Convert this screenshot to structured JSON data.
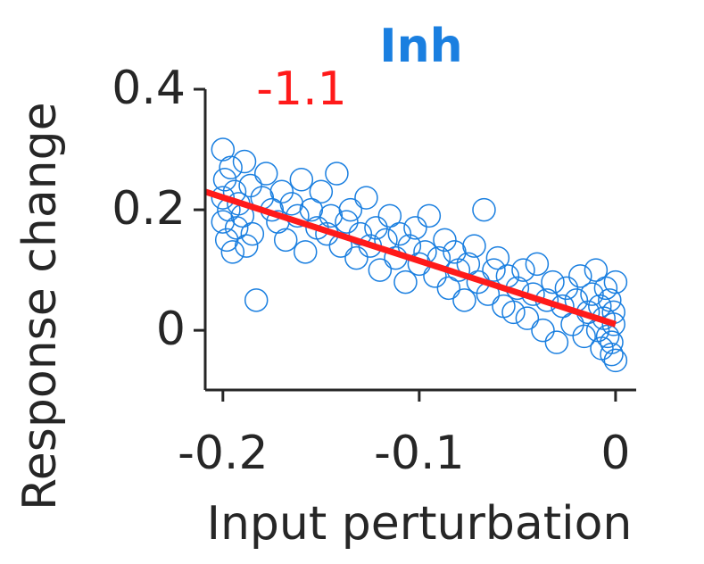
{
  "chart_data": {
    "type": "scatter",
    "title": "Inh",
    "title_color": "#1a7fe0",
    "xlabel": "Input perturbation",
    "ylabel": "Response change",
    "annotations": [
      {
        "text": "-1.1",
        "color": "#ff1a1a"
      }
    ],
    "xlim": [
      -0.209,
      0.0105
    ],
    "ylim": [
      -0.099,
      0.4
    ],
    "xticks": [
      -0.2,
      -0.1,
      0
    ],
    "yticks": [
      0,
      0.2,
      0.4
    ],
    "series": [
      {
        "color": "#1a7fe0",
        "x": [
          -0.2,
          -0.2,
          -0.2,
          -0.199,
          -0.198,
          -0.197,
          -0.196,
          -0.195,
          -0.194,
          -0.193,
          -0.192,
          -0.19,
          -0.189,
          -0.188,
          -0.186,
          -0.185,
          -0.183,
          -0.18,
          -0.178,
          -0.175,
          -0.172,
          -0.17,
          -0.168,
          -0.165,
          -0.162,
          -0.16,
          -0.158,
          -0.155,
          -0.152,
          -0.15,
          -0.147,
          -0.145,
          -0.142,
          -0.14,
          -0.137,
          -0.135,
          -0.132,
          -0.13,
          -0.127,
          -0.125,
          -0.122,
          -0.12,
          -0.117,
          -0.115,
          -0.112,
          -0.11,
          -0.107,
          -0.105,
          -0.102,
          -0.1,
          -0.097,
          -0.095,
          -0.092,
          -0.09,
          -0.087,
          -0.085,
          -0.082,
          -0.08,
          -0.077,
          -0.075,
          -0.072,
          -0.07,
          -0.067,
          -0.065,
          -0.062,
          -0.06,
          -0.057,
          -0.055,
          -0.052,
          -0.05,
          -0.047,
          -0.045,
          -0.042,
          -0.04,
          -0.037,
          -0.035,
          -0.032,
          -0.03,
          -0.027,
          -0.025,
          -0.022,
          -0.02,
          -0.018,
          -0.016,
          -0.014,
          -0.012,
          -0.01,
          -0.009,
          -0.008,
          -0.007,
          -0.006,
          -0.005,
          -0.004,
          -0.003,
          -0.002,
          -0.001,
          0,
          0,
          -0.001,
          -0.002
        ],
        "values": [
          0.22,
          0.18,
          0.3,
          0.25,
          0.15,
          0.2,
          0.27,
          0.13,
          0.23,
          0.17,
          0.21,
          0.19,
          0.28,
          0.14,
          0.24,
          0.16,
          0.05,
          0.22,
          0.26,
          0.2,
          0.18,
          0.23,
          0.15,
          0.21,
          0.19,
          0.25,
          0.13,
          0.2,
          0.17,
          0.23,
          0.16,
          0.19,
          0.26,
          0.14,
          0.18,
          0.2,
          0.12,
          0.16,
          0.22,
          0.14,
          0.17,
          0.1,
          0.15,
          0.19,
          0.12,
          0.16,
          0.08,
          0.14,
          0.17,
          0.11,
          0.13,
          0.19,
          0.09,
          0.12,
          0.15,
          0.07,
          0.13,
          0.1,
          0.05,
          0.11,
          0.14,
          0.08,
          0.2,
          0.06,
          0.1,
          0.12,
          0.04,
          0.09,
          0.03,
          0.07,
          0.1,
          0.02,
          0.06,
          0.11,
          0.0,
          0.05,
          0.08,
          -0.02,
          0.04,
          0.07,
          0.01,
          0.05,
          0.09,
          -0.01,
          0.03,
          0.06,
          0.1,
          0.0,
          0.04,
          -0.03,
          0.02,
          0.07,
          -0.01,
          0.05,
          -0.04,
          0.03,
          0.08,
          -0.05,
          0.01,
          -0.02
        ]
      }
    ],
    "fit": {
      "color": "#ff1a1a",
      "x": [
        -0.209,
        0
      ],
      "values": [
        0.23,
        0.01
      ]
    }
  }
}
